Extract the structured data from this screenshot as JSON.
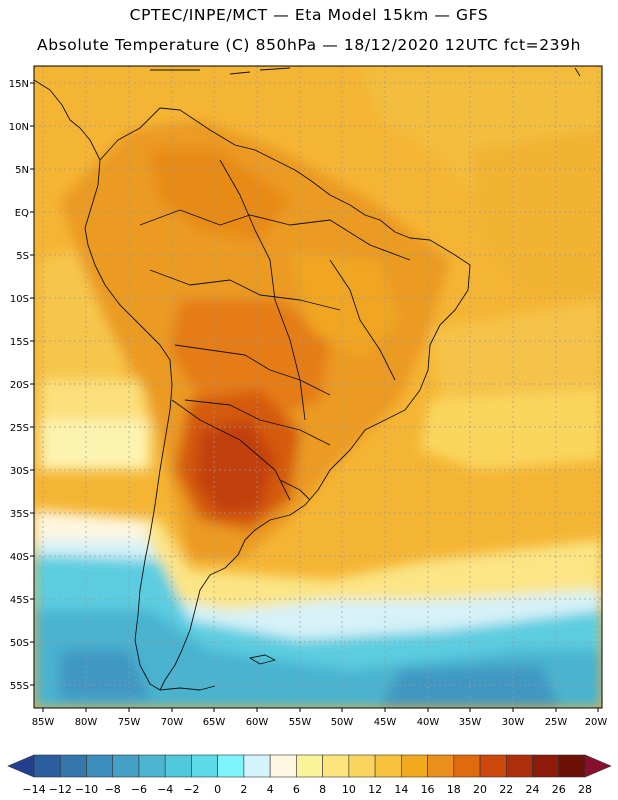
{
  "header": {
    "line1": "CPTEC/INPE/MCT —  Eta Model 15km — GFS",
    "line2": "Absolute Temperature (C) 850hPa — 18/12/2020 12UTC fct=239h"
  },
  "map": {
    "lat_labels": [
      "15N",
      "10N",
      "5N",
      "EQ",
      "5S",
      "10S",
      "15S",
      "20S",
      "25S",
      "30S",
      "35S",
      "40S",
      "45S",
      "50S",
      "55S"
    ],
    "lon_labels": [
      "85W",
      "80W",
      "75W",
      "70W",
      "65W",
      "60W",
      "55W",
      "50W",
      "45W",
      "40W",
      "35W",
      "30W",
      "25W",
      "20W"
    ],
    "extent": {
      "lon_min": -86,
      "lon_max": -19.5,
      "lat_min": -57.5,
      "lat_max": 16.5
    }
  },
  "colorbar": {
    "values": [
      "-14",
      "-12",
      "-10",
      "-8",
      "-6",
      "-4",
      "-2",
      "0",
      "2",
      "4",
      "6",
      "8",
      "10",
      "12",
      "14",
      "16",
      "18",
      "20",
      "22",
      "24",
      "26",
      "28"
    ],
    "colors": [
      "#233f8f",
      "#2a5e9f",
      "#3377ab",
      "#3b8dbb",
      "#43a1c7",
      "#4bb5d2",
      "#52c8dc",
      "#5ddbe8",
      "#7ef4fc",
      "#d4f4fc",
      "#fdf6e0",
      "#fbf39a",
      "#fce57c",
      "#fbd45f",
      "#f7c23e",
      "#f1aa1e",
      "#ea8f1c",
      "#e06a0e",
      "#cc480c",
      "#ad2e0a",
      "#8c1c08",
      "#6d1106",
      "#8a0f2e"
    ]
  },
  "chart_data": {
    "type": "heatmap",
    "title": "Absolute Temperature (C) 850hPa",
    "model": "Eta Model 15km - GFS",
    "source": "CPTEC/INPE/MCT",
    "valid": "18/12/2020 12UTC fct=239h",
    "units": "C",
    "levels": [
      -14,
      -12,
      -10,
      -8,
      -6,
      -4,
      -2,
      0,
      2,
      4,
      6,
      8,
      10,
      12,
      14,
      16,
      18,
      20,
      22,
      24,
      26,
      28
    ],
    "xlim": [
      -86,
      -19.5
    ],
    "ylim": [
      -57.5,
      16.5
    ]
  }
}
